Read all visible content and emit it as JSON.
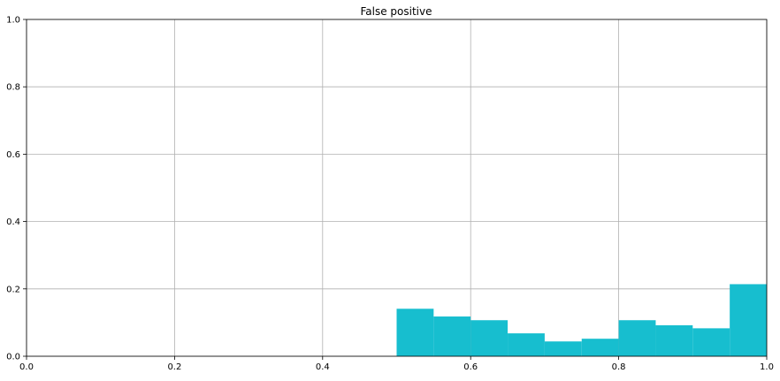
{
  "chart_data": {
    "type": "bar",
    "title": "False positive",
    "xlabel": "",
    "ylabel": "",
    "xlim": [
      0,
      1
    ],
    "ylim": [
      0,
      1
    ],
    "x_ticks": [
      0.0,
      0.2,
      0.4,
      0.6,
      0.8,
      1.0
    ],
    "x_tick_labels": [
      "0.0",
      "0.2",
      "0.4",
      "0.6",
      "0.8",
      "1.0"
    ],
    "y_ticks": [
      0.0,
      0.2,
      0.4,
      0.6,
      0.8,
      1.0
    ],
    "y_tick_labels": [
      "0.0",
      "0.2",
      "0.4",
      "0.6",
      "0.8",
      "1.0"
    ],
    "grid": true,
    "bar_color": "#17becf",
    "bins": [
      {
        "x0": 0.5,
        "x1": 0.55,
        "value": 0.141
      },
      {
        "x0": 0.55,
        "x1": 0.6,
        "value": 0.118
      },
      {
        "x0": 0.6,
        "x1": 0.65,
        "value": 0.107
      },
      {
        "x0": 0.65,
        "x1": 0.7,
        "value": 0.068
      },
      {
        "x0": 0.7,
        "x1": 0.75,
        "value": 0.044
      },
      {
        "x0": 0.75,
        "x1": 0.8,
        "value": 0.052
      },
      {
        "x0": 0.8,
        "x1": 0.85,
        "value": 0.107
      },
      {
        "x0": 0.85,
        "x1": 0.9,
        "value": 0.092
      },
      {
        "x0": 0.9,
        "x1": 0.95,
        "value": 0.083
      },
      {
        "x0": 0.95,
        "x1": 1.0,
        "value": 0.214
      }
    ]
  }
}
